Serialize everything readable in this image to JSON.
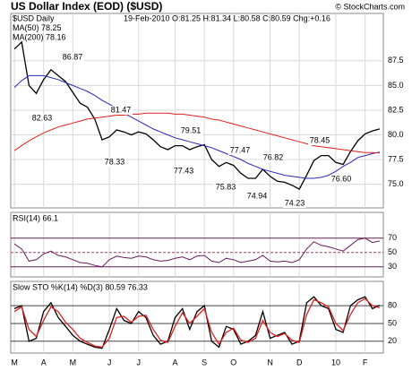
{
  "chart_data": [
    {
      "type": "line",
      "title": "US Dollar Index (EOD) ($USD)",
      "source": "© StockCharts.com",
      "quote": "19-Feb-2010 O:81.25 H:81.34 L:80.58 C:80.59 Chg:+0.16",
      "ylim": [
        72.6,
        92.3
      ],
      "yticks": [
        {
          "value": 75,
          "label": "75.0"
        },
        77.5,
        {
          "value": 80,
          "label": "80.0"
        },
        82.5,
        {
          "value": 85,
          "label": "85.0"
        },
        87.5
      ],
      "grid": true,
      "annotations": [
        "82.63",
        "86.87",
        "81.47",
        "78.33",
        "79.51",
        "77.43",
        "77.47",
        "75.83",
        "76.82",
        "74.94",
        "74.23",
        "78.45",
        "76.60"
      ],
      "series": [
        {
          "name": "$USD Daily",
          "color": "#000000",
          "values": [
            88.7,
            89.4,
            85.0,
            84.2,
            85.6,
            86.6,
            86.0,
            85.4,
            84.3,
            83.2,
            82.8,
            81.6,
            79.5,
            79.8,
            80.5,
            80.3,
            80.0,
            80.3,
            80.1,
            79.5,
            78.8,
            78.5,
            78.9,
            78.9,
            78.5,
            78.8,
            79.0,
            77.5,
            76.8,
            77.2,
            76.9,
            76.1,
            75.6,
            75.6,
            76.5,
            75.8,
            75.3,
            75.2,
            74.9,
            74.5,
            75.9,
            77.4,
            77.9,
            77.9,
            77.2,
            77.0,
            78.3,
            79.4,
            80.1,
            80.4,
            80.6
          ]
        },
        {
          "name": "MA(50) 78.25",
          "color": "#2a2ab8",
          "values": [
            84.8,
            85.5,
            86.0,
            86.0,
            86.0,
            85.8,
            85.6,
            85.3,
            85.0,
            84.7,
            84.4,
            84.0,
            83.5,
            83.1,
            82.7,
            82.2,
            81.8,
            81.4,
            81.0,
            80.6,
            80.3,
            80.0,
            79.7,
            79.5,
            79.3,
            79.1,
            78.9,
            78.7,
            78.4,
            78.1,
            77.8,
            77.5,
            77.1,
            76.8,
            76.5,
            76.3,
            76.1,
            75.9,
            75.8,
            75.7,
            75.6,
            75.6,
            75.7,
            75.9,
            76.3,
            76.8,
            77.2,
            77.7,
            77.9,
            78.1,
            78.25
          ]
        },
        {
          "name": "MA(200) 78.16",
          "color": "#e02020",
          "values": [
            78.4,
            78.9,
            79.4,
            79.8,
            80.2,
            80.5,
            80.8,
            81.0,
            81.2,
            81.4,
            81.6,
            81.7,
            81.8,
            81.9,
            82.0,
            82.0,
            82.1,
            82.1,
            82.2,
            82.2,
            82.2,
            82.2,
            82.1,
            82.1,
            82.0,
            81.9,
            81.8,
            81.6,
            81.5,
            81.3,
            81.1,
            80.9,
            80.7,
            80.5,
            80.3,
            80.1,
            79.9,
            79.7,
            79.5,
            79.3,
            79.1,
            78.9,
            78.8,
            78.7,
            78.6,
            78.5,
            78.4,
            78.3,
            78.2,
            78.2,
            78.16
          ]
        }
      ]
    },
    {
      "type": "line",
      "ylim": [
        16,
        106
      ],
      "yticks": [
        30,
        50,
        70
      ],
      "grid": true,
      "series": [
        {
          "name": "RSI(14) 66.1",
          "color": "#6a1a5a",
          "values": [
            62,
            55,
            38,
            40,
            48,
            52,
            46,
            44,
            40,
            36,
            35,
            32,
            30,
            40,
            45,
            43,
            42,
            45,
            44,
            40,
            38,
            39,
            42,
            44,
            40,
            45,
            46,
            38,
            36,
            42,
            40,
            36,
            38,
            40,
            46,
            38,
            37,
            38,
            36,
            40,
            55,
            65,
            60,
            58,
            55,
            52,
            60,
            68,
            70,
            64,
            66.1
          ]
        }
      ]
    },
    {
      "type": "line",
      "title": "Slow STO %K(14) %D(3) 80.59 76.33",
      "ylim": [
        0,
        121
      ],
      "yticks": [
        20,
        50,
        80
      ],
      "grid": true,
      "categories": [
        "M",
        null,
        null,
        null,
        "A",
        null,
        null,
        null,
        "M",
        null,
        null,
        null,
        null,
        "J",
        null,
        null,
        null,
        "J",
        null,
        null,
        null,
        null,
        "A",
        null,
        null,
        null,
        "S",
        null,
        null,
        null,
        "O",
        null,
        null,
        null,
        null,
        "N",
        null,
        null,
        null,
        "D",
        null,
        null,
        null,
        null,
        "10",
        null,
        null,
        null,
        "F",
        null,
        null
      ],
      "series": [
        {
          "color": "#000000",
          "values": [
            75,
            80,
            20,
            25,
            70,
            85,
            60,
            45,
            30,
            20,
            15,
            10,
            8,
            40,
            75,
            55,
            50,
            70,
            60,
            30,
            15,
            20,
            60,
            75,
            40,
            70,
            80,
            20,
            10,
            45,
            40,
            15,
            20,
            30,
            70,
            25,
            30,
            35,
            15,
            20,
            85,
            95,
            80,
            75,
            40,
            35,
            80,
            90,
            95,
            75,
            80.59
          ]
        },
        {
          "color": "#e02020",
          "values": [
            70,
            78,
            40,
            28,
            55,
            78,
            70,
            52,
            40,
            25,
            18,
            12,
            10,
            25,
            60,
            62,
            52,
            62,
            64,
            40,
            22,
            18,
            45,
            68,
            50,
            62,
            75,
            35,
            15,
            35,
            42,
            22,
            18,
            25,
            55,
            35,
            28,
            33,
            22,
            18,
            65,
            90,
            85,
            78,
            50,
            38,
            65,
            85,
            92,
            80,
            76.33
          ]
        }
      ]
    }
  ]
}
